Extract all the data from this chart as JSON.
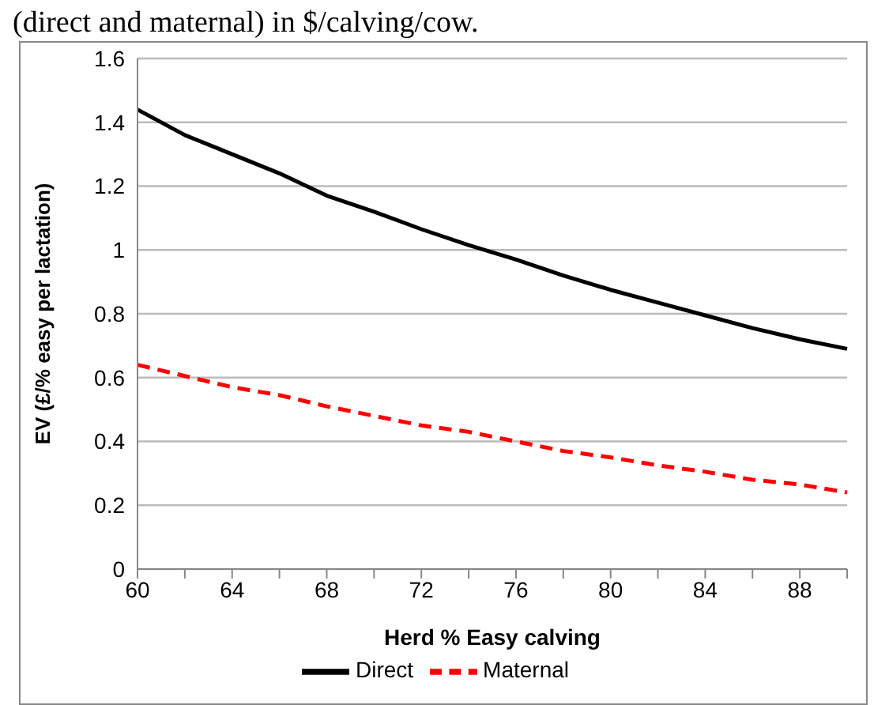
{
  "chart_data": {
    "type": "line",
    "annotations": [
      "(direct and maternal) in $/calving/cow."
    ],
    "xlabel": "Herd  % Easy calving",
    "ylabel": "EV (£/% easy per lactation)",
    "categories": [
      "60",
      null,
      "64",
      null,
      "68",
      null,
      "72",
      null,
      "76",
      null,
      "80",
      null,
      "84",
      null,
      "88",
      null
    ],
    "series": [
      {
        "name": "Direct",
        "color": "#000000",
        "line_style": "solid",
        "values": [
          1.44,
          1.36,
          1.3,
          1.24,
          1.17,
          1.12,
          1.065,
          1.015,
          0.97,
          0.92,
          0.875,
          0.835,
          0.795,
          0.755,
          0.72,
          0.69
        ]
      },
      {
        "name": "Maternal",
        "color": "#ff0000",
        "line_style": "dashed",
        "values": [
          0.64,
          0.605,
          0.57,
          0.545,
          0.51,
          0.48,
          0.45,
          0.43,
          0.4,
          0.37,
          0.35,
          0.325,
          0.305,
          0.28,
          0.265,
          0.24
        ]
      }
    ],
    "ylim": [
      0,
      1.6
    ],
    "yticks": [
      0,
      0.2,
      0.4,
      0.6,
      0.8,
      1,
      1.2,
      1.4,
      1.6
    ],
    "grid": "y",
    "legend": "bottom",
    "marker": "none"
  }
}
